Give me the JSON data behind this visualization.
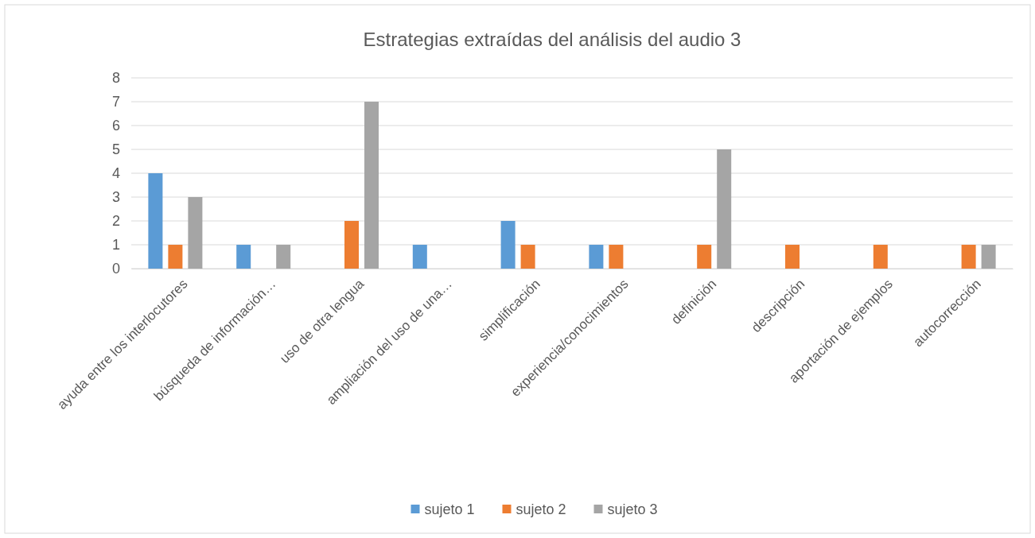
{
  "chart_data": {
    "type": "bar",
    "title": "Estrategias extraídas del análisis del audio 3",
    "categories": [
      "ayuda entre los interlocutores",
      "búsqueda de información…",
      "uso de otra lengua",
      "ampliación del uso de una…",
      "simplificación",
      "experiencia/conocimientos",
      "definición",
      "descripción",
      "aportación de ejemplos",
      "autocorrección"
    ],
    "series": [
      {
        "name": "sujeto 1",
        "color": "#5b9bd5",
        "values": [
          4,
          1,
          0,
          1,
          2,
          1,
          0,
          0,
          0,
          0
        ]
      },
      {
        "name": "sujeto 2",
        "color": "#ed7d31",
        "values": [
          1,
          0,
          2,
          0,
          1,
          1,
          1,
          1,
          1,
          1
        ]
      },
      {
        "name": "sujeto 3",
        "color": "#a5a5a5",
        "values": [
          3,
          1,
          7,
          0,
          0,
          0,
          5,
          0,
          0,
          1
        ]
      }
    ],
    "ylim": [
      0,
      8
    ],
    "yticks": [
      0,
      1,
      2,
      3,
      4,
      5,
      6,
      7,
      8
    ],
    "grid": "y",
    "legend": "bottom"
  }
}
